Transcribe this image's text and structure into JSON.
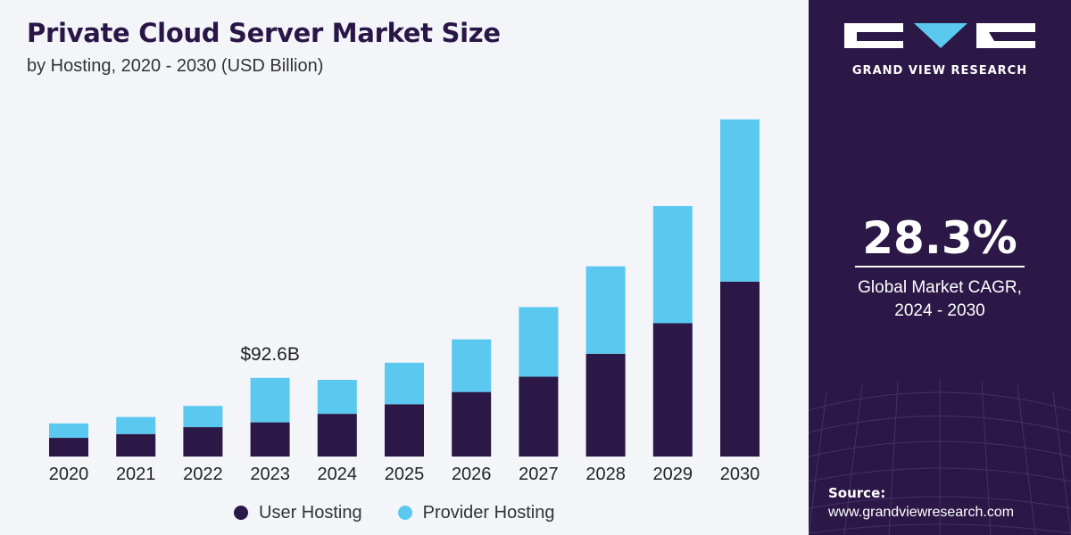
{
  "header": {
    "title": "Private Cloud Server Market Size",
    "subtitle": "by Hosting, 2020 - 2030 (USD Billion)"
  },
  "chart_data": {
    "type": "bar",
    "stacked": true,
    "categories": [
      "2020",
      "2021",
      "2022",
      "2023",
      "2024",
      "2025",
      "2026",
      "2027",
      "2028",
      "2029",
      "2030"
    ],
    "series": [
      {
        "name": "User Hosting",
        "color": "#2c1846",
        "values": [
          22.0,
          26.5,
          34.6,
          40.3,
          50.3,
          61.6,
          76.0,
          94.0,
          121.0,
          157.0,
          206.0
        ]
      },
      {
        "name": "Provider Hosting",
        "color": "#5bc8f0",
        "values": [
          17.0,
          20.0,
          25.0,
          52.3,
          40.0,
          48.9,
          62.0,
          82.0,
          103.0,
          138.0,
          191.0
        ]
      }
    ],
    "annotations": [
      {
        "category": "2023",
        "text": "$92.6B"
      }
    ],
    "ylim": [
      0,
      420
    ],
    "grid": false,
    "legend_position": "bottom"
  },
  "legend": {
    "items": [
      {
        "label": "User Hosting",
        "color": "#2c1846"
      },
      {
        "label": "Provider Hosting",
        "color": "#5bc8f0"
      }
    ]
  },
  "sidebar": {
    "brand": "GRAND VIEW RESEARCH",
    "cagr_value": "28.3%",
    "cagr_label_line1": "Global Market CAGR,",
    "cagr_label_line2": "2024 - 2030",
    "source_label": "Source:",
    "source_url": "www.grandviewresearch.com"
  },
  "colors": {
    "brand_dark": "#2c1846",
    "accent_blue": "#5bc8f0",
    "background": "#f3f5f9"
  }
}
